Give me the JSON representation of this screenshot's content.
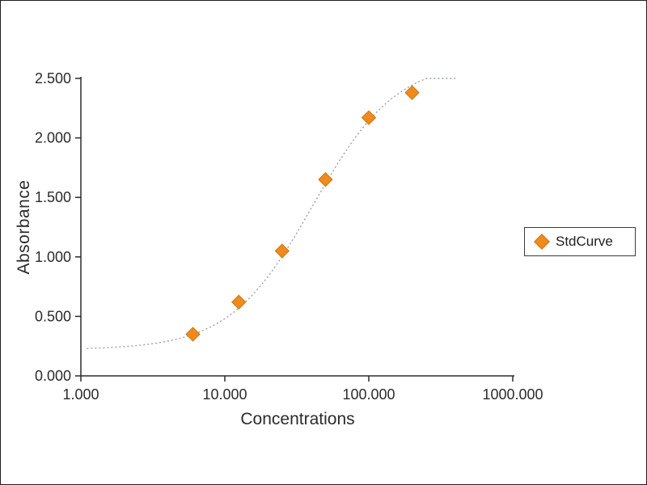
{
  "window": {
    "background": "#ffffff",
    "frame_border_color": "#1f1f1f"
  },
  "chart_data": {
    "type": "scatter",
    "title": "",
    "xlabel": "Concentrations",
    "ylabel": "Absorbance",
    "x_scale": "log",
    "xlim": [
      1,
      1000
    ],
    "ylim": [
      0,
      2.5
    ],
    "grid": "off",
    "x_ticks": [
      1,
      10,
      100,
      1000
    ],
    "x_tick_labels": [
      "1.000",
      "10.000",
      "100.000",
      "1000.000"
    ],
    "y_ticks": [
      0,
      0.5,
      1,
      1.5,
      2,
      2.5
    ],
    "y_tick_labels": [
      "0.000",
      "0.500",
      "1.000",
      "1.500",
      "2.000",
      "2.500"
    ],
    "axis_color": "#2b2b2b",
    "series": [
      {
        "name": "StdCurve",
        "marker": "diamond",
        "color": "#ee8a1e",
        "marker_edge_color": "#c97a14",
        "points": [
          {
            "x": 6,
            "y": 0.35
          },
          {
            "x": 12.5,
            "y": 0.62
          },
          {
            "x": 25,
            "y": 1.05
          },
          {
            "x": 50,
            "y": 1.65
          },
          {
            "x": 100,
            "y": 2.17
          },
          {
            "x": 200,
            "y": 2.38
          }
        ]
      }
    ],
    "fit_curve": {
      "model": "4PL-sigmoid",
      "style": "dash-dot",
      "color": "#9aa0a6",
      "params": {
        "bottom": 0.22,
        "top": 2.65,
        "c50": 41,
        "hill": 1.5
      },
      "x_range": [
        1.1,
        400
      ]
    },
    "legend": {
      "label": "StdCurve",
      "position": "right"
    }
  }
}
